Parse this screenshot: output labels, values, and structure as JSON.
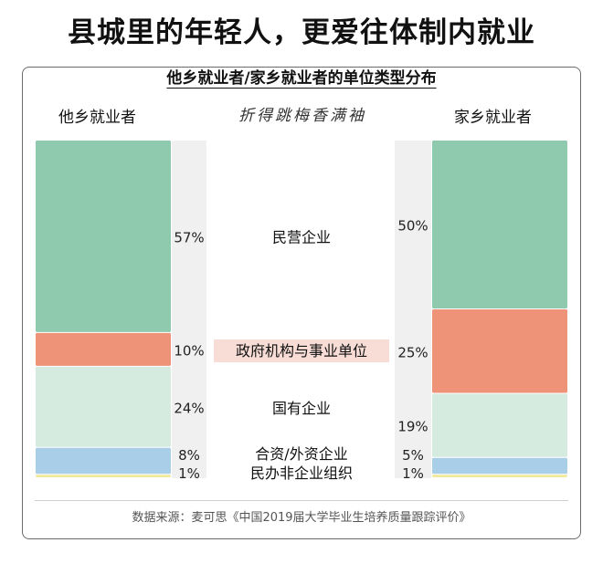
{
  "headline": "县城里的年轻人，更爱往体制内就业",
  "watermark": "折得跳梅香满袖",
  "source": "数据来源：麦可思《中国2019届大学毕业生培养质量跟踪评价》",
  "chart_data": {
    "type": "bar",
    "stacked": true,
    "percent": true,
    "title": "他乡就业者/家乡就业者的单位类型分布",
    "categories": [
      "他乡就业者",
      "家乡就业者"
    ],
    "series": [
      {
        "name": "民营企业",
        "values": [
          57,
          50
        ],
        "color": "#8fc9ae",
        "label_bg": ""
      },
      {
        "name": "政府机构与事业单位",
        "values": [
          10,
          25
        ],
        "color": "#ee9278",
        "label_bg": "#f7ddd6"
      },
      {
        "name": "国有企业",
        "values": [
          24,
          19
        ],
        "color": "#d5ebe0",
        "label_bg": ""
      },
      {
        "name": "合资/外资企业",
        "values": [
          8,
          5
        ],
        "color": "#a9cfe8",
        "label_bg": ""
      },
      {
        "name": "民办非企业组织",
        "values": [
          1,
          1
        ],
        "color": "#f2e89a",
        "label_bg": ""
      }
    ],
    "value_labels": [
      [
        "57%",
        "50%"
      ],
      [
        "10%",
        "25%"
      ],
      [
        "24%",
        "19%"
      ],
      [
        "8%",
        "5%"
      ],
      [
        "1%",
        "1%"
      ]
    ],
    "label_band_color": "#f0f0f0"
  }
}
